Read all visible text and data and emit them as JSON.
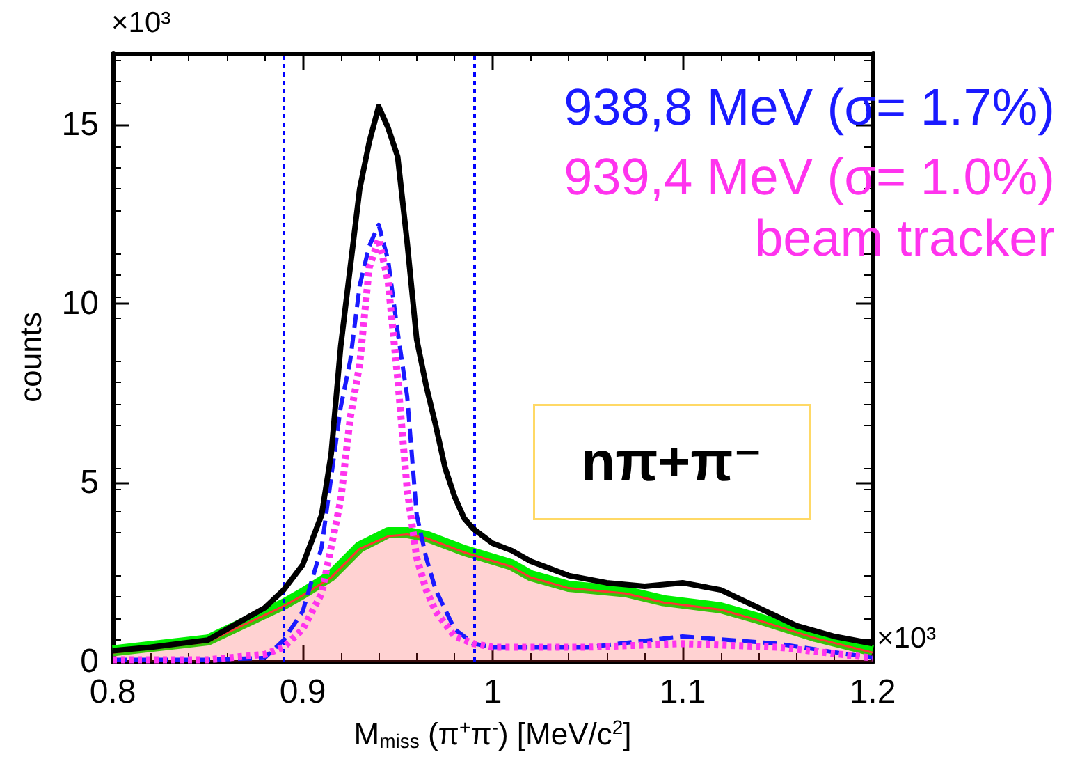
{
  "chart_data": {
    "type": "line",
    "xlabel": "M$_{miss}$ (π$^{+}$π$^{-}$) [MeV/c$^{2}$]",
    "ylabel": "counts",
    "xlim": [
      0.8,
      1.2
    ],
    "xticks": [
      0.8,
      0.9,
      1,
      1.1,
      1.2
    ],
    "ylim": [
      0,
      17
    ],
    "yticks": [
      0,
      5,
      10,
      15
    ],
    "legend": "top right",
    "grid": false,
    "marker": "none",
    "annotations": [
      "nπ+π⁻",
      "×10³",
      "×10³"
    ],
    "ref_lines": [
      {
        "axis": "x",
        "value": 0.89,
        "color": "#0000ff",
        "line_style": "dotted"
      },
      {
        "axis": "x",
        "value": 0.99,
        "color": "#0000ff",
        "line_style": "dotted"
      }
    ],
    "series": [
      {
        "type": "area",
        "color": "#ff3333",
        "x": [
          0.8,
          0.85,
          0.87,
          0.89,
          0.9,
          0.915,
          0.93,
          0.945,
          0.955,
          0.965,
          0.985,
          1.01,
          1.02,
          1.04,
          1.07,
          1.09,
          1.12,
          1.14,
          1.17,
          1.2
        ],
        "values": [
          0.25,
          0.55,
          1.05,
          1.55,
          1.85,
          2.35,
          3.15,
          3.5,
          3.55,
          3.45,
          3.05,
          2.65,
          2.35,
          2.05,
          1.9,
          1.65,
          1.45,
          1.15,
          0.65,
          0.25
        ]
      },
      {
        "color": "#00ee00",
        "x": [
          0.8,
          0.85,
          0.87,
          0.89,
          0.9,
          0.915,
          0.93,
          0.945,
          0.955,
          0.965,
          0.985,
          1.01,
          1.02,
          1.04,
          1.07,
          1.09,
          1.12,
          1.14,
          1.17,
          1.2
        ],
        "values": [
          0.3,
          0.6,
          1.1,
          1.6,
          1.9,
          2.4,
          3.2,
          3.6,
          3.6,
          3.5,
          3.1,
          2.7,
          2.4,
          2.1,
          1.95,
          1.7,
          1.5,
          1.2,
          0.7,
          0.3
        ]
      },
      {
        "name": "938,8 MeV (σ= 1.7%)",
        "color": "#1a1aff",
        "line_style": "dashed",
        "x": [
          0.8,
          0.85,
          0.88,
          0.89,
          0.9,
          0.91,
          0.92,
          0.925,
          0.93,
          0.935,
          0.94,
          0.945,
          0.95,
          0.955,
          0.96,
          0.965,
          0.97,
          0.98,
          0.99,
          1.0,
          1.05,
          1.1,
          1.15,
          1.2
        ],
        "values": [
          0.05,
          0.05,
          0.1,
          0.6,
          1.4,
          3.2,
          7.1,
          8.4,
          10.5,
          11.6,
          12.2,
          11.2,
          9.2,
          7.4,
          4.1,
          2.9,
          2.0,
          0.9,
          0.5,
          0.4,
          0.4,
          0.7,
          0.5,
          0.1
        ]
      },
      {
        "name": "939,4 MeV (σ= 1.0%)\nbeam tracker",
        "color": "#ff33ee",
        "line_style": "dotted",
        "x": [
          0.8,
          0.85,
          0.88,
          0.89,
          0.9,
          0.91,
          0.92,
          0.925,
          0.93,
          0.935,
          0.94,
          0.945,
          0.95,
          0.955,
          0.96,
          0.965,
          0.97,
          0.98,
          0.99,
          1.0,
          1.05,
          1.1,
          1.15,
          1.2
        ],
        "values": [
          0.05,
          0.05,
          0.2,
          0.4,
          0.9,
          1.9,
          4.5,
          6.8,
          8.3,
          11.0,
          11.8,
          10.6,
          7.9,
          4.8,
          2.9,
          2.0,
          1.4,
          0.7,
          0.5,
          0.4,
          0.4,
          0.5,
          0.4,
          0.1
        ]
      },
      {
        "color": "#000000",
        "x": [
          0.8,
          0.82,
          0.85,
          0.87,
          0.88,
          0.89,
          0.9,
          0.91,
          0.915,
          0.92,
          0.925,
          0.93,
          0.935,
          0.94,
          0.945,
          0.95,
          0.955,
          0.96,
          0.965,
          0.97,
          0.975,
          0.98,
          0.985,
          0.99,
          1.0,
          1.01,
          1.02,
          1.04,
          1.06,
          1.08,
          1.1,
          1.12,
          1.14,
          1.16,
          1.18,
          1.2
        ],
        "values": [
          0.3,
          0.4,
          0.6,
          1.2,
          1.5,
          2.0,
          2.7,
          4.1,
          5.8,
          8.8,
          11.0,
          13.2,
          14.5,
          15.5,
          14.9,
          14.1,
          11.7,
          9.0,
          7.7,
          6.6,
          5.4,
          4.6,
          4.0,
          3.7,
          3.3,
          3.1,
          2.8,
          2.4,
          2.2,
          2.1,
          2.2,
          2.0,
          1.5,
          1.0,
          0.7,
          0.5
        ]
      }
    ]
  }
}
